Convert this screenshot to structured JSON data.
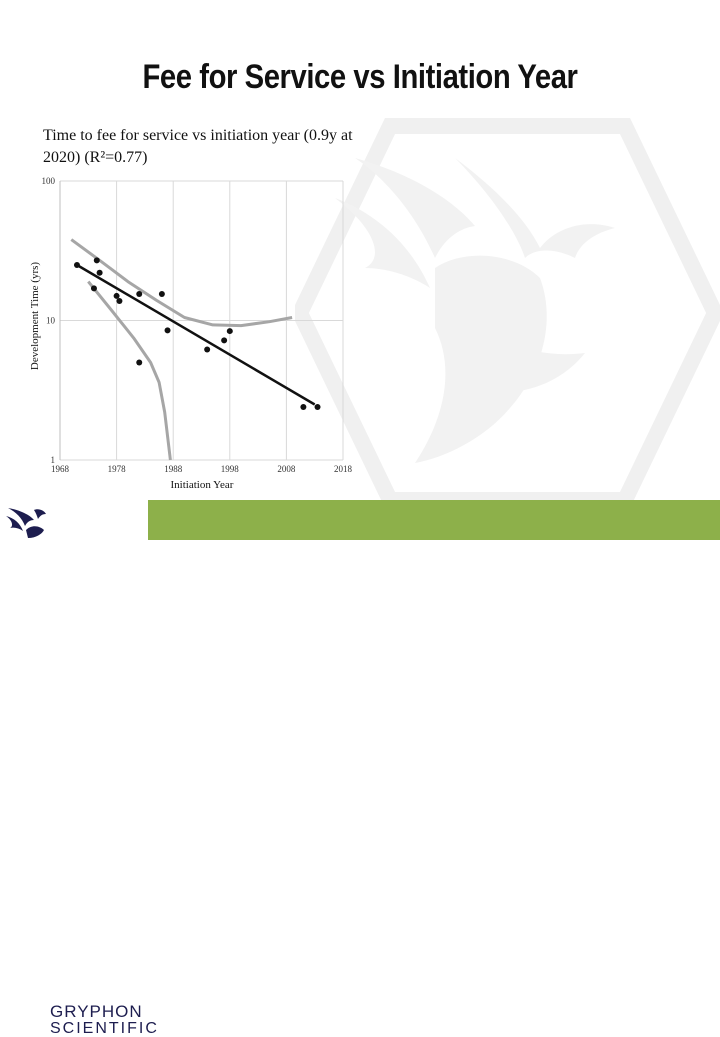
{
  "slide": {
    "title": "Fee for Service vs Initiation Year"
  },
  "logo": {
    "name": "GRYPHON",
    "sub": "SCIENTIFIC",
    "icon": "gryphon-icon"
  },
  "colors": {
    "footer": "#8db04a",
    "trend": "#111111",
    "band": "#a6a6a6",
    "grid": "#d9d9d9"
  },
  "chart_data": {
    "type": "scatter",
    "title": "Time to fee for service vs initiation year (0.9y at 2020) (R²=0.77)",
    "xlabel": "Initiation Year",
    "ylabel": "Development Time (yrs)",
    "y_scale": "log",
    "xlim": [
      1968,
      2018
    ],
    "ylim": [
      1,
      100
    ],
    "x_ticks": [
      1968,
      1978,
      1988,
      1998,
      2008,
      2018
    ],
    "x_tick_labels": [
      "1968",
      "1978",
      "1988",
      "1998",
      "2008",
      "2018"
    ],
    "y_ticks": [
      1,
      10,
      100
    ],
    "y_tick_labels": [
      "1",
      "10",
      "100"
    ],
    "grid": true,
    "points": [
      {
        "x": 1971,
        "y": 25
      },
      {
        "x": 1974,
        "y": 17
      },
      {
        "x": 1974.5,
        "y": 27
      },
      {
        "x": 1975,
        "y": 22
      },
      {
        "x": 1978,
        "y": 15
      },
      {
        "x": 1978.5,
        "y": 13.8
      },
      {
        "x": 1982,
        "y": 15.5
      },
      {
        "x": 1982,
        "y": 5
      },
      {
        "x": 1986,
        "y": 15.5
      },
      {
        "x": 1987,
        "y": 8.5
      },
      {
        "x": 1994,
        "y": 6.2
      },
      {
        "x": 1997,
        "y": 7.2
      },
      {
        "x": 1998,
        "y": 8.4
      },
      {
        "x": 2011,
        "y": 2.4
      },
      {
        "x": 2013.5,
        "y": 2.4
      }
    ],
    "trend_line": [
      {
        "x": 1971,
        "y": 25
      },
      {
        "x": 2013,
        "y": 2.5
      }
    ],
    "upper_band": [
      {
        "x": 1970,
        "y": 38
      },
      {
        "x": 1975,
        "y": 27
      },
      {
        "x": 1980,
        "y": 19
      },
      {
        "x": 1985,
        "y": 14
      },
      {
        "x": 1990,
        "y": 10.5
      },
      {
        "x": 1995,
        "y": 9.3
      },
      {
        "x": 2000,
        "y": 9.2
      },
      {
        "x": 2005,
        "y": 9.8
      },
      {
        "x": 2009,
        "y": 10.5
      }
    ],
    "lower_band": [
      {
        "x": 1973,
        "y": 19
      },
      {
        "x": 1977,
        "y": 12
      },
      {
        "x": 1981,
        "y": 7.5
      },
      {
        "x": 1984,
        "y": 5
      },
      {
        "x": 1985.5,
        "y": 3.6
      },
      {
        "x": 1986.5,
        "y": 2.2
      },
      {
        "x": 1987.5,
        "y": 1
      }
    ]
  }
}
